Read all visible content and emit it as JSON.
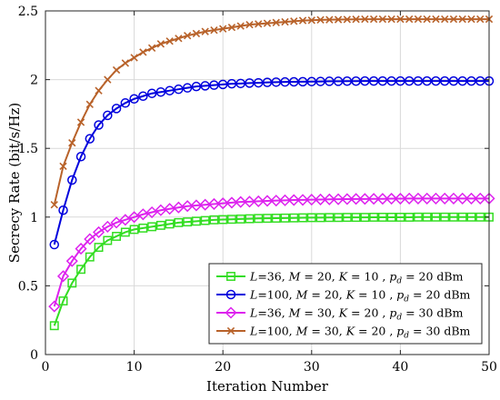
{
  "chart_data": {
    "type": "line",
    "title": "",
    "xlabel": "Iteration Number",
    "ylabel": "Secrecy Rate (bit/s/Hz)",
    "xlim": [
      0,
      50
    ],
    "ylim": [
      0,
      2.5
    ],
    "xticks": [
      0,
      10,
      20,
      30,
      40,
      50
    ],
    "yticks": [
      0,
      0.5,
      1,
      1.5,
      2,
      2.5
    ],
    "xtick_labels": [
      "0",
      "10",
      "20",
      "30",
      "40",
      "50"
    ],
    "ytick_labels": [
      "0",
      "0.5",
      "1",
      "1.5",
      "2",
      "2.5"
    ],
    "grid": true,
    "legend_position": "bottom-right",
    "series": [
      {
        "legend": {
          "p1": "L",
          "p2": "=36, ",
          "p3": "M",
          "p4": " = 20, ",
          "p5": "K",
          "p6": " = 10 , ",
          "p7": "p",
          "p8": "d",
          "p9": " = 20 dBm"
        },
        "color": "#33dd22",
        "marker": "square",
        "x": [
          1,
          2,
          3,
          4,
          5,
          6,
          7,
          8,
          9,
          10,
          11,
          12,
          13,
          14,
          15,
          16,
          17,
          18,
          19,
          20,
          21,
          22,
          23,
          24,
          25,
          26,
          27,
          28,
          29,
          30,
          31,
          32,
          33,
          34,
          35,
          36,
          37,
          38,
          39,
          40,
          41,
          42,
          43,
          44,
          45,
          46,
          47,
          48,
          49,
          50
        ],
        "y": [
          0.21,
          0.39,
          0.52,
          0.62,
          0.71,
          0.78,
          0.83,
          0.86,
          0.89,
          0.91,
          0.92,
          0.93,
          0.94,
          0.95,
          0.96,
          0.965,
          0.97,
          0.975,
          0.98,
          0.982,
          0.984,
          0.986,
          0.988,
          0.99,
          0.991,
          0.992,
          0.993,
          0.994,
          0.995,
          0.996,
          0.996,
          0.997,
          0.997,
          0.998,
          0.998,
          0.998,
          0.999,
          0.999,
          0.999,
          0.999,
          0.999,
          1.0,
          1.0,
          1.0,
          1.0,
          1.0,
          1.0,
          1.0,
          1.0,
          1.0
        ]
      },
      {
        "legend": {
          "p1": "L",
          "p2": "=100, ",
          "p3": "M",
          "p4": " = 20, ",
          "p5": "K",
          "p6": " = 10 , ",
          "p7": "p",
          "p8": "d",
          "p9": " = 20 dBm"
        },
        "color": "#0000dd",
        "marker": "circle",
        "x": [
          1,
          2,
          3,
          4,
          5,
          6,
          7,
          8,
          9,
          10,
          11,
          12,
          13,
          14,
          15,
          16,
          17,
          18,
          19,
          20,
          21,
          22,
          23,
          24,
          25,
          26,
          27,
          28,
          29,
          30,
          31,
          32,
          33,
          34,
          35,
          36,
          37,
          38,
          39,
          40,
          41,
          42,
          43,
          44,
          45,
          46,
          47,
          48,
          49,
          50
        ],
        "y": [
          0.8,
          1.05,
          1.27,
          1.44,
          1.57,
          1.67,
          1.74,
          1.79,
          1.83,
          1.86,
          1.88,
          1.9,
          1.91,
          1.92,
          1.93,
          1.94,
          1.95,
          1.955,
          1.96,
          1.965,
          1.97,
          1.972,
          1.975,
          1.977,
          1.98,
          1.982,
          1.983,
          1.984,
          1.985,
          1.986,
          1.987,
          1.988,
          1.988,
          1.989,
          1.989,
          1.99,
          1.99,
          1.99,
          1.99,
          1.99,
          1.99,
          1.99,
          1.99,
          1.99,
          1.99,
          1.99,
          1.99,
          1.99,
          1.99,
          1.99
        ]
      },
      {
        "legend": {
          "p1": "L",
          "p2": "=36, ",
          "p3": "M",
          "p4": " = 30, ",
          "p5": "K",
          "p6": " = 20 , ",
          "p7": "p",
          "p8": "d",
          "p9": " = 30 dBm"
        },
        "color": "#dd22ee",
        "marker": "diamond",
        "x": [
          1,
          2,
          3,
          4,
          5,
          6,
          7,
          8,
          9,
          10,
          11,
          12,
          13,
          14,
          15,
          16,
          17,
          18,
          19,
          20,
          21,
          22,
          23,
          24,
          25,
          26,
          27,
          28,
          29,
          30,
          31,
          32,
          33,
          34,
          35,
          36,
          37,
          38,
          39,
          40,
          41,
          42,
          43,
          44,
          45,
          46,
          47,
          48,
          49,
          50
        ],
        "y": [
          0.35,
          0.57,
          0.68,
          0.77,
          0.84,
          0.89,
          0.93,
          0.96,
          0.98,
          1.0,
          1.02,
          1.035,
          1.05,
          1.06,
          1.07,
          1.08,
          1.085,
          1.09,
          1.095,
          1.1,
          1.105,
          1.11,
          1.112,
          1.115,
          1.118,
          1.12,
          1.122,
          1.124,
          1.125,
          1.127,
          1.128,
          1.129,
          1.13,
          1.131,
          1.132,
          1.132,
          1.133,
          1.133,
          1.134,
          1.134,
          1.135,
          1.135,
          1.135,
          1.135,
          1.135,
          1.135,
          1.135,
          1.135,
          1.135,
          1.135
        ]
      },
      {
        "legend": {
          "p1": "L",
          "p2": "=100, ",
          "p3": "M",
          "p4": " = 30, ",
          "p5": "K",
          "p6": " = 20 , ",
          "p7": "p",
          "p8": "d",
          "p9": " = 30 dBm"
        },
        "color": "#b8622a",
        "marker": "x",
        "x": [
          1,
          2,
          3,
          4,
          5,
          6,
          7,
          8,
          9,
          10,
          11,
          12,
          13,
          14,
          15,
          16,
          17,
          18,
          19,
          20,
          21,
          22,
          23,
          24,
          25,
          26,
          27,
          28,
          29,
          30,
          31,
          32,
          33,
          34,
          35,
          36,
          37,
          38,
          39,
          40,
          41,
          42,
          43,
          44,
          45,
          46,
          47,
          48,
          49,
          50
        ],
        "y": [
          1.09,
          1.37,
          1.54,
          1.69,
          1.82,
          1.92,
          2.0,
          2.07,
          2.12,
          2.16,
          2.2,
          2.23,
          2.26,
          2.28,
          2.3,
          2.32,
          2.335,
          2.35,
          2.36,
          2.37,
          2.38,
          2.39,
          2.4,
          2.405,
          2.41,
          2.415,
          2.42,
          2.425,
          2.43,
          2.432,
          2.435,
          2.436,
          2.437,
          2.438,
          2.439,
          2.44,
          2.44,
          2.44,
          2.44,
          2.44,
          2.44,
          2.44,
          2.44,
          2.44,
          2.44,
          2.44,
          2.44,
          2.44,
          2.44,
          2.44
        ]
      }
    ]
  }
}
